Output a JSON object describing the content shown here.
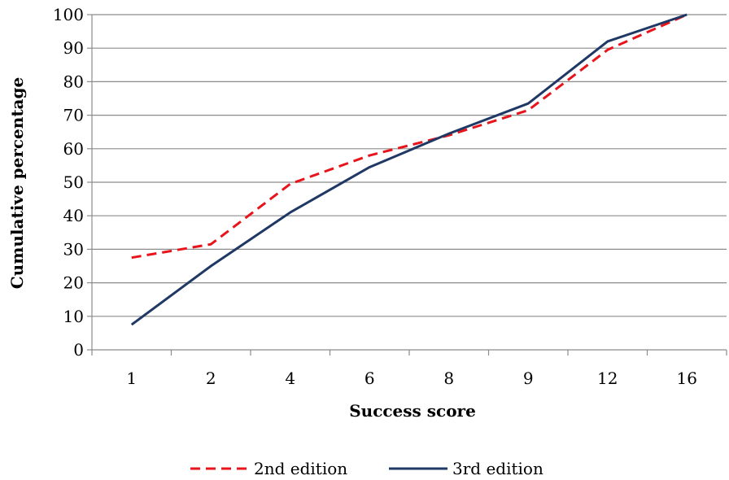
{
  "chart_data": {
    "type": "line",
    "title": "",
    "xlabel": "Success score",
    "ylabel": "Cumulative percentage",
    "categories": [
      "1",
      "2",
      "4",
      "6",
      "8",
      "9",
      "12",
      "16"
    ],
    "ylim": [
      0,
      100
    ],
    "yticks": [
      0,
      10,
      20,
      30,
      40,
      50,
      60,
      70,
      80,
      90,
      100
    ],
    "grid": true,
    "legend_position": "bottom",
    "series": [
      {
        "name": "2nd edition",
        "color": "#e8141b",
        "dash": "dashed",
        "values": [
          27.5,
          31.5,
          49.5,
          58,
          64,
          71.5,
          89.5,
          100
        ]
      },
      {
        "name": "3rd edition",
        "color": "#1f3864",
        "dash": "solid",
        "values": [
          7.5,
          25,
          41,
          54.5,
          64.5,
          73.5,
          92,
          100
        ]
      }
    ]
  }
}
